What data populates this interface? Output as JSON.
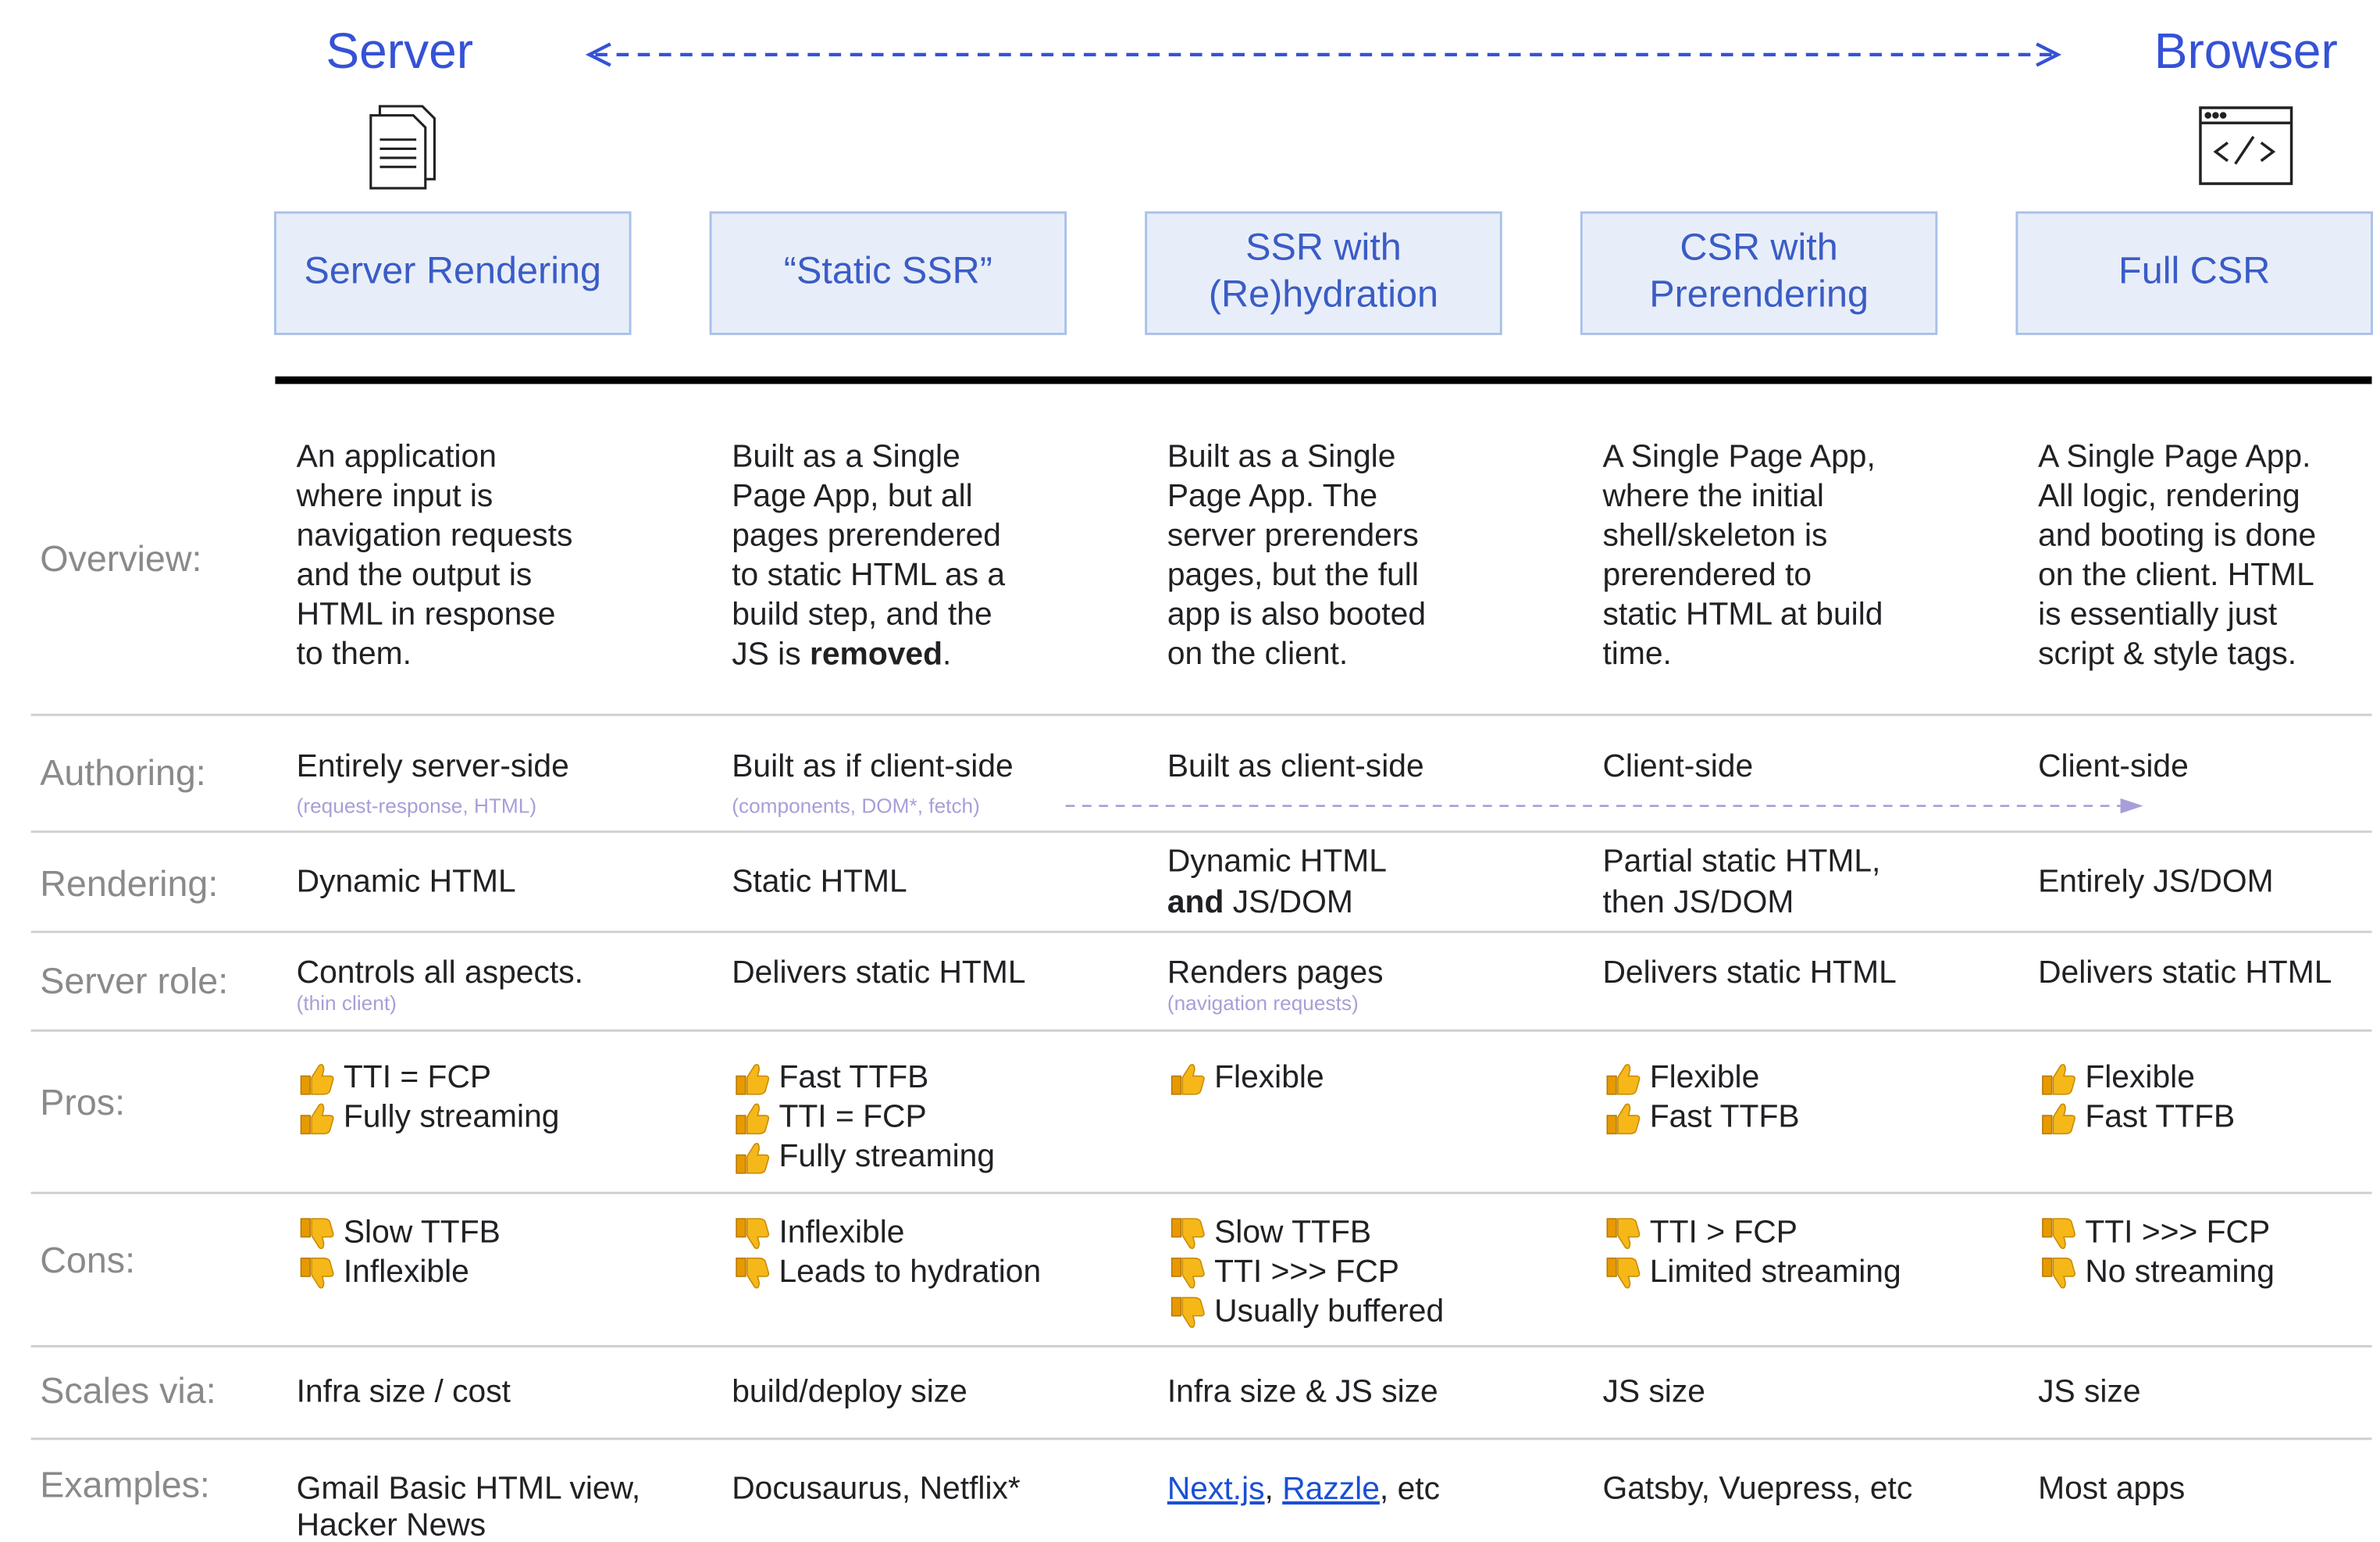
{
  "header": {
    "left": "Server",
    "right": "Browser"
  },
  "columns": [
    [
      "Server Rendering"
    ],
    [
      "“Static SSR”"
    ],
    [
      "SSR with",
      "(Re)hydration"
    ],
    [
      "CSR with",
      "Prerendering"
    ],
    [
      "Full CSR"
    ]
  ],
  "rows": [
    {
      "label": "Overview:",
      "cells": [
        {
          "lines": [
            "An application",
            "where input is",
            "navigation requests",
            "and the output is",
            "HTML in response",
            "to them."
          ]
        },
        {
          "lines": [
            "Built as a Single",
            "Page App, but all",
            "pages prerendered",
            "to static HTML as a",
            "build step, and the",
            [
              "JS is ",
              {
                "text": "removed",
                "style": "bold"
              },
              "."
            ]
          ]
        },
        {
          "lines": [
            "Built as a Single",
            "Page App. The",
            "server prerenders",
            "pages, but the full",
            "app is also booted",
            "on the client."
          ]
        },
        {
          "lines": [
            "A Single Page App,",
            "where the initial",
            "shell/skeleton is",
            "prerendered to",
            "static HTML at build",
            "time."
          ]
        },
        {
          "lines": [
            "A Single Page App.",
            "All logic, rendering",
            "and booting is done",
            "on the client. HTML",
            "is essentially just",
            "script & style tags."
          ]
        }
      ]
    },
    {
      "label": "Authoring:",
      "cells": [
        {
          "lines": [
            "Entirely server-side"
          ],
          "note": "(request-response, HTML)"
        },
        {
          "lines": [
            "Built as if client-side"
          ],
          "note": "(components, DOM*, fetch)"
        },
        {
          "lines": [
            "Built as client-side"
          ]
        },
        {
          "lines": [
            "Client-side"
          ]
        },
        {
          "lines": [
            "Client-side"
          ]
        }
      ]
    },
    {
      "label": "Rendering:",
      "cells": [
        {
          "lines": [
            "Dynamic HTML"
          ]
        },
        {
          "lines": [
            "Static HTML"
          ]
        },
        {
          "lines": [
            "Dynamic HTML",
            [
              {
                "text": "and",
                "style": "bold"
              },
              " JS/DOM"
            ]
          ]
        },
        {
          "lines": [
            "Partial static HTML,",
            "then JS/DOM"
          ]
        },
        {
          "lines": [
            "Entirely JS/DOM"
          ]
        }
      ]
    },
    {
      "label": "Server role:",
      "cells": [
        {
          "lines": [
            "Controls all aspects."
          ],
          "note": "(thin client)"
        },
        {
          "lines": [
            "Delivers static HTML"
          ]
        },
        {
          "lines": [
            "Renders pages"
          ],
          "note": "(navigation requests)"
        },
        {
          "lines": [
            "Delivers static HTML"
          ]
        },
        {
          "lines": [
            "Delivers static HTML"
          ]
        }
      ]
    },
    {
      "label": "Pros:",
      "icon": "up",
      "cells": [
        {
          "lines": [
            "TTI = FCP",
            "Fully streaming"
          ]
        },
        {
          "lines": [
            "Fast TTFB",
            "TTI = FCP",
            "Fully streaming"
          ]
        },
        {
          "lines": [
            "Flexible"
          ]
        },
        {
          "lines": [
            "Flexible",
            "Fast TTFB"
          ]
        },
        {
          "lines": [
            "Flexible",
            "Fast TTFB"
          ]
        }
      ]
    },
    {
      "label": "Cons:",
      "icon": "down",
      "cells": [
        {
          "lines": [
            "Slow TTFB",
            "Inflexible"
          ]
        },
        {
          "lines": [
            "Inflexible",
            "Leads to hydration"
          ]
        },
        {
          "lines": [
            "Slow TTFB",
            "TTI >>> FCP",
            "Usually buffered"
          ]
        },
        {
          "lines": [
            "TTI > FCP",
            "Limited streaming"
          ]
        },
        {
          "lines": [
            "TTI >>> FCP",
            "No streaming"
          ]
        }
      ]
    },
    {
      "label": "Scales via:",
      "cells": [
        {
          "lines": [
            "Infra size / cost"
          ]
        },
        {
          "lines": [
            "build/deploy size"
          ]
        },
        {
          "lines": [
            "Infra size & JS size"
          ]
        },
        {
          "lines": [
            "JS size"
          ]
        },
        {
          "lines": [
            "JS size"
          ]
        }
      ]
    },
    {
      "label": "Examples:",
      "cells": [
        {
          "lines": [
            "Gmail Basic HTML view,",
            "Hacker News"
          ]
        },
        {
          "lines": [
            "Docusaurus, Netflix*"
          ]
        },
        {
          "lines": [
            [
              {
                "text": "Next.js",
                "style": "link"
              },
              ", ",
              {
                "text": "Razzle",
                "style": "link"
              },
              ", etc"
            ]
          ]
        },
        {
          "lines": [
            "Gatsby, Vuepress, etc"
          ]
        },
        {
          "lines": [
            "Most apps"
          ]
        }
      ]
    }
  ]
}
